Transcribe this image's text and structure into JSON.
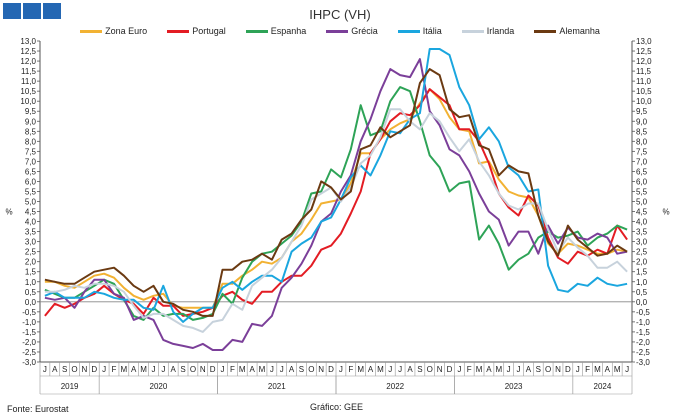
{
  "title": "IHPC (VH)",
  "footer": {
    "source": "Fonte: Eurostat",
    "graphic": "Gráfico: GEE"
  },
  "chart_data": {
    "type": "line",
    "title": "IHPC (VH)",
    "ylabel_left": "%",
    "ylabel_right": "%",
    "ylim": [
      -3.0,
      13.0
    ],
    "ytick_step": 0.5,
    "grid": false,
    "legend_position": "top",
    "month_labels": [
      "J",
      "A",
      "S",
      "O",
      "N",
      "D",
      "J",
      "F",
      "M",
      "A",
      "M",
      "J",
      "J",
      "A",
      "S",
      "O",
      "N",
      "D",
      "J",
      "F",
      "M",
      "A",
      "M",
      "J",
      "J",
      "A",
      "S",
      "O",
      "N",
      "D",
      "J",
      "F",
      "M",
      "A",
      "M",
      "J",
      "J",
      "A",
      "S",
      "O",
      "N",
      "D",
      "J",
      "F",
      "M",
      "A",
      "M",
      "J",
      "J",
      "A",
      "S",
      "O",
      "N",
      "D",
      "J",
      "F",
      "M",
      "A",
      "M",
      "J"
    ],
    "years": [
      {
        "label": "2019",
        "start": 0,
        "end": 6
      },
      {
        "label": "2020",
        "start": 6,
        "end": 18
      },
      {
        "label": "2021",
        "start": 18,
        "end": 30
      },
      {
        "label": "2022",
        "start": 30,
        "end": 42
      },
      {
        "label": "2023",
        "start": 42,
        "end": 54
      },
      {
        "label": "2024",
        "start": 54,
        "end": 60
      }
    ],
    "series": [
      {
        "name": "Zona Euro",
        "color": "#f2b233",
        "values": [
          1.0,
          1.0,
          0.8,
          0.7,
          1.0,
          1.3,
          1.4,
          1.2,
          0.7,
          0.3,
          0.1,
          0.3,
          0.4,
          -0.2,
          -0.3,
          -0.3,
          -0.3,
          -0.3,
          0.9,
          0.9,
          1.3,
          1.6,
          2.0,
          1.9,
          2.2,
          3.0,
          3.4,
          4.1,
          4.9,
          5.0,
          5.1,
          5.9,
          7.4,
          7.4,
          8.1,
          8.6,
          8.9,
          9.1,
          9.9,
          10.6,
          10.1,
          9.2,
          8.6,
          8.5,
          6.9,
          7.0,
          6.1,
          5.5,
          5.3,
          5.2,
          4.3,
          2.9,
          2.4,
          2.9,
          2.8,
          2.6,
          2.4,
          2.4,
          2.6,
          2.5
        ]
      },
      {
        "name": "Portugal",
        "color": "#e31c23",
        "values": [
          -0.7,
          -0.1,
          -0.3,
          -0.1,
          0.2,
          0.4,
          0.8,
          0.4,
          0.1,
          -0.1,
          -0.6,
          0.2,
          -0.2,
          -0.2,
          -0.7,
          -0.6,
          -0.5,
          -0.3,
          0.3,
          0.5,
          0.1,
          -0.1,
          0.5,
          0.5,
          1.0,
          1.3,
          1.3,
          1.8,
          2.6,
          2.8,
          3.4,
          4.4,
          5.5,
          7.4,
          8.1,
          9.0,
          9.4,
          9.3,
          9.8,
          10.6,
          10.2,
          9.8,
          8.6,
          8.6,
          8.0,
          6.9,
          5.4,
          4.7,
          4.3,
          5.3,
          4.8,
          3.2,
          2.2,
          1.9,
          2.5,
          2.3,
          2.6,
          2.4,
          3.8,
          3.1
        ]
      },
      {
        "name": "Espanha",
        "color": "#2ea357",
        "values": [
          0.6,
          0.4,
          0.2,
          0.2,
          0.5,
          0.8,
          1.1,
          0.9,
          0.1,
          -0.7,
          -0.9,
          -0.3,
          -0.7,
          -0.6,
          -0.6,
          -0.9,
          -0.8,
          -0.6,
          0.4,
          -0.1,
          1.2,
          2.0,
          2.4,
          2.5,
          2.9,
          3.3,
          4.0,
          5.4,
          5.5,
          6.6,
          6.2,
          7.6,
          9.8,
          8.3,
          8.5,
          10.0,
          10.7,
          10.5,
          9.0,
          7.3,
          6.7,
          5.5,
          5.9,
          6.0,
          3.1,
          3.8,
          2.9,
          1.6,
          2.1,
          2.4,
          3.2,
          3.5,
          3.2,
          3.3,
          3.5,
          2.8,
          3.2,
          3.4,
          3.8,
          3.6
        ]
      },
      {
        "name": "Grécia",
        "color": "#7b3f99",
        "values": [
          0.2,
          0.1,
          0.2,
          -0.3,
          0.5,
          1.1,
          1.1,
          0.4,
          0.2,
          -0.9,
          -0.7,
          -0.9,
          -1.9,
          -2.1,
          -2.2,
          -2.3,
          -2.1,
          -2.4,
          -2.4,
          -1.9,
          -2.0,
          -1.1,
          -1.2,
          -0.7,
          0.7,
          1.2,
          1.9,
          2.8,
          4.0,
          4.4,
          5.5,
          6.3,
          8.0,
          9.1,
          10.5,
          11.6,
          11.3,
          11.2,
          12.1,
          9.5,
          8.8,
          7.6,
          7.3,
          6.5,
          5.4,
          4.5,
          4.1,
          2.8,
          3.5,
          3.5,
          2.4,
          3.8,
          2.9,
          3.7,
          3.2,
          3.1,
          3.4,
          3.2,
          2.4,
          2.5
        ]
      },
      {
        "name": "Itália",
        "color": "#1aa6df",
        "values": [
          0.3,
          0.5,
          0.2,
          0.2,
          0.2,
          0.5,
          0.4,
          0.2,
          0.1,
          0.1,
          -0.3,
          -0.4,
          0.8,
          -0.5,
          -1.0,
          -0.6,
          -0.3,
          -0.3,
          0.7,
          1.0,
          0.6,
          1.0,
          1.3,
          1.3,
          1.0,
          2.5,
          2.9,
          3.2,
          4.0,
          4.2,
          5.1,
          6.2,
          6.8,
          6.3,
          7.3,
          8.5,
          8.4,
          9.1,
          9.4,
          12.6,
          12.6,
          12.3,
          10.7,
          9.8,
          8.1,
          8.7,
          8.0,
          6.7,
          6.3,
          5.5,
          5.6,
          1.8,
          0.6,
          0.5,
          0.9,
          0.8,
          1.2,
          0.9,
          0.8,
          0.9
        ]
      },
      {
        "name": "Irlanda",
        "color": "#c7d2dc",
        "values": [
          0.5,
          0.5,
          0.6,
          0.8,
          0.7,
          0.9,
          0.9,
          0.8,
          0.5,
          -0.2,
          -0.8,
          -0.6,
          -0.6,
          -0.9,
          -1.2,
          -1.3,
          -1.5,
          -1.0,
          -0.9,
          -0.1,
          -0.4,
          0.8,
          1.2,
          1.6,
          2.2,
          3.0,
          3.8,
          5.1,
          5.4,
          5.7,
          5.0,
          5.7,
          6.9,
          7.3,
          8.2,
          9.6,
          9.6,
          9.0,
          8.6,
          9.4,
          9.0,
          8.2,
          7.5,
          8.1,
          7.0,
          6.3,
          5.4,
          4.8,
          4.6,
          4.9,
          4.9,
          3.6,
          2.5,
          3.2,
          2.7,
          2.3,
          1.7,
          1.7,
          2.0,
          1.5
        ]
      },
      {
        "name": "Alemanha",
        "color": "#6b3a12",
        "values": [
          1.1,
          1.0,
          0.9,
          0.9,
          1.2,
          1.5,
          1.6,
          1.7,
          1.3,
          0.8,
          0.5,
          0.8,
          0.0,
          -0.1,
          -0.4,
          -0.5,
          -0.7,
          -0.7,
          1.6,
          1.6,
          2.0,
          2.1,
          2.4,
          2.1,
          3.1,
          3.4,
          4.1,
          4.6,
          6.0,
          5.7,
          5.1,
          5.5,
          7.6,
          7.8,
          8.7,
          8.2,
          8.5,
          8.8,
          10.9,
          11.6,
          11.3,
          9.6,
          9.2,
          9.3,
          7.8,
          7.6,
          6.3,
          6.8,
          6.5,
          6.4,
          4.3,
          3.0,
          2.3,
          3.8,
          3.1,
          2.7,
          2.3,
          2.4,
          2.8,
          2.5
        ]
      }
    ]
  }
}
